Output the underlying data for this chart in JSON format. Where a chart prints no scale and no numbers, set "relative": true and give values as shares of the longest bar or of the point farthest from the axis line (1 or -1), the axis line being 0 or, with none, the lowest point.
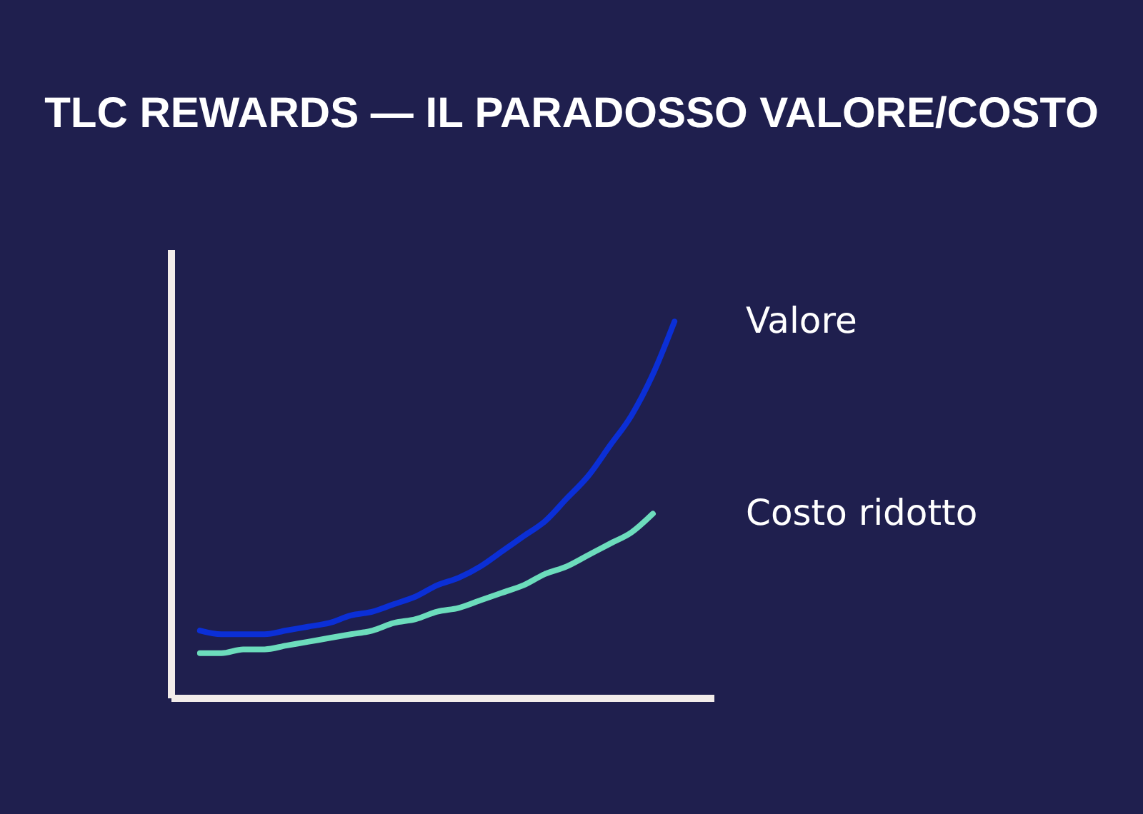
{
  "chart_data": {
    "type": "line",
    "title": "TLC REWARDS — IL PARADOSSO VALORE/COSTO",
    "relative": true,
    "categories": [
      null,
      null,
      null,
      null,
      null,
      null,
      null,
      null,
      null,
      null,
      null,
      null,
      null,
      null,
      null,
      null,
      null,
      null,
      null,
      null,
      null,
      null,
      null
    ],
    "series": [
      {
        "name": "Valore",
        "color": "#0b2fd6",
        "values": [
          0.18,
          0.17,
          0.17,
          0.17,
          0.18,
          0.19,
          0.2,
          0.22,
          0.23,
          0.25,
          0.27,
          0.3,
          0.32,
          0.35,
          0.39,
          0.43,
          0.47,
          0.53,
          0.59,
          0.67,
          0.75,
          0.86,
          1.0
        ]
      },
      {
        "name": "Costo ridotto",
        "color": "#6cdcbc",
        "values": [
          0.12,
          0.12,
          0.13,
          0.13,
          0.14,
          0.15,
          0.16,
          0.17,
          0.18,
          0.2,
          0.21,
          0.23,
          0.24,
          0.26,
          0.28,
          0.3,
          0.33,
          0.35,
          0.38,
          0.41,
          0.44,
          0.49,
          null
        ]
      }
    ],
    "marker": "none",
    "line_style": "solid"
  }
}
